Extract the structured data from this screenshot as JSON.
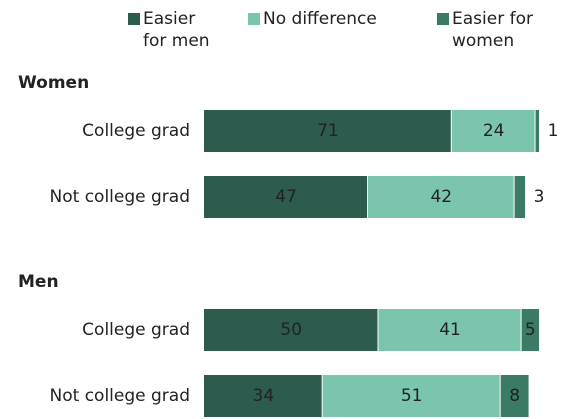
{
  "chart_data": {
    "type": "bar",
    "series": [
      {
        "name": "Easier for men",
        "color": "#2d5c4f"
      },
      {
        "name": "No difference",
        "color": "#7bc4ae"
      },
      {
        "name": "Easier for women",
        "color": "#3b7b65"
      }
    ],
    "groups": [
      {
        "name": "Women",
        "categories": [
          "College grad",
          "Not college grad"
        ],
        "values": [
          [
            71,
            47
          ],
          [
            24,
            42
          ],
          [
            1,
            3
          ]
        ]
      },
      {
        "name": "Men",
        "categories": [
          "College grad",
          "Not college grad"
        ],
        "values": [
          [
            50,
            34
          ],
          [
            41,
            51
          ],
          [
            5,
            8
          ]
        ]
      }
    ],
    "xlim": [
      0,
      100
    ]
  }
}
